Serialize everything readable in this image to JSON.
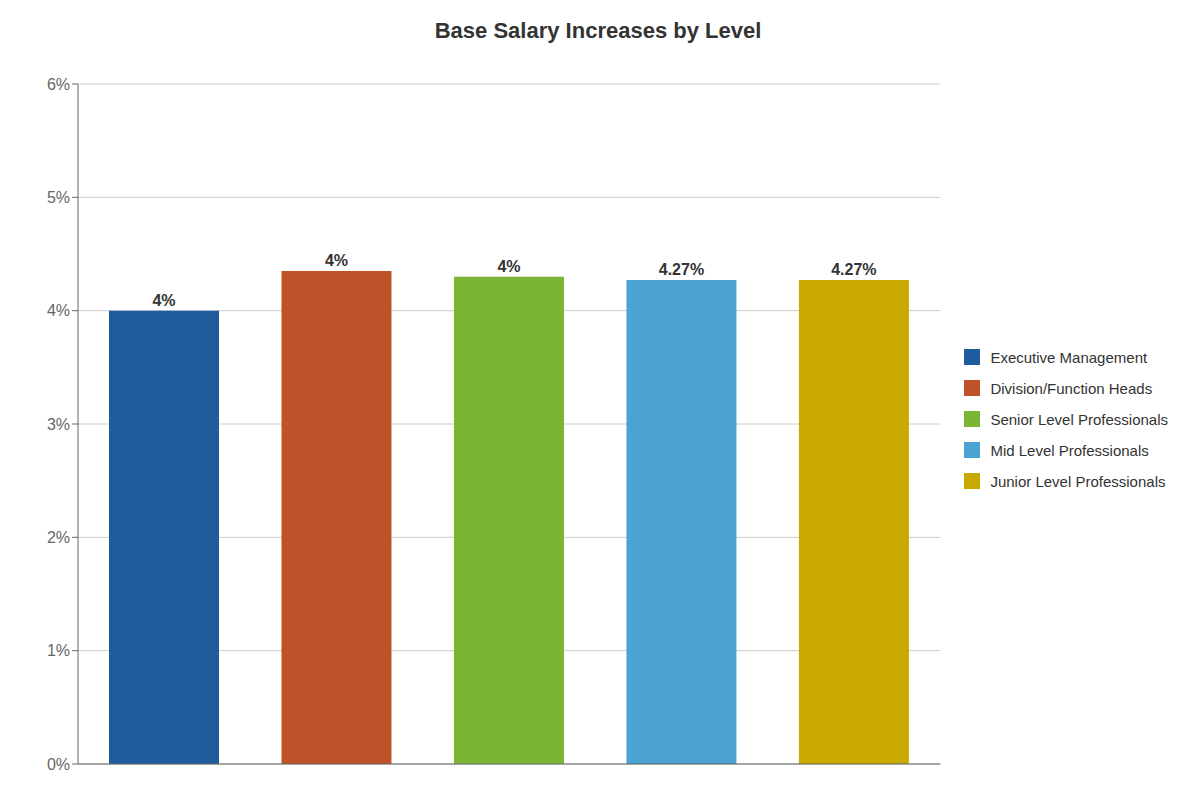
{
  "chart_data": {
    "type": "bar",
    "title": "Base Salary Increases by Level",
    "categories": [
      "Executive Management",
      "Division/Function Heads",
      "Senior Level Professionals",
      "Mid Level Professionals",
      "Junior Level Professionals"
    ],
    "values": [
      4.0,
      4.35,
      4.3,
      4.27,
      4.27
    ],
    "value_labels": [
      "4%",
      "4%",
      "4%",
      "4.27%",
      "4.27%"
    ],
    "colors": [
      "#1F5C9E",
      "#C0522A",
      "#7AB534",
      "#4BA3D3",
      "#C9A800"
    ],
    "ylim": [
      0,
      6
    ],
    "yticks": [
      {
        "value": 0,
        "label": "0%"
      },
      {
        "value": 1,
        "label": "1%"
      },
      {
        "value": 2,
        "label": "2%"
      },
      {
        "value": 3,
        "label": "3%"
      },
      {
        "value": 4,
        "label": "4%"
      },
      {
        "value": 5,
        "label": "5%"
      },
      {
        "value": 6,
        "label": "6%"
      }
    ],
    "grid": true,
    "legend": "right",
    "tick_labels": "y"
  }
}
